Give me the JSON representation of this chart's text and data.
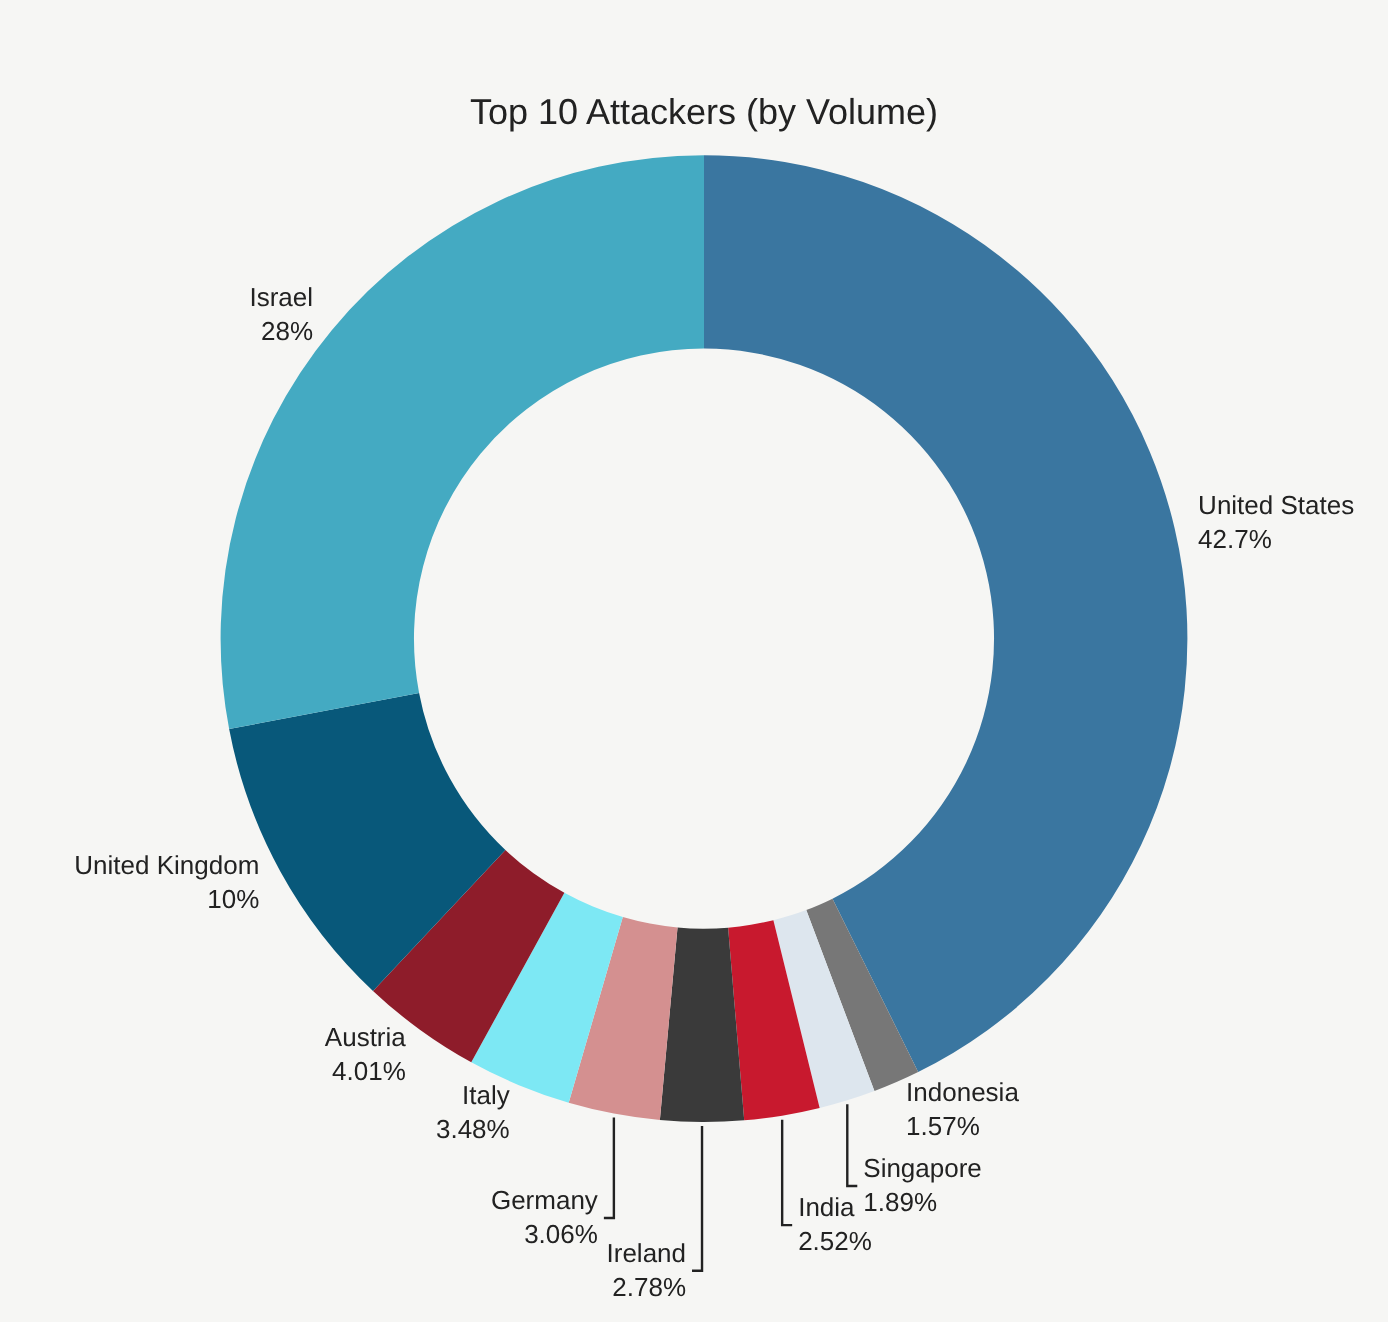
{
  "chart_data": {
    "type": "donut",
    "title": "Top 10 Attackers (by Volume)",
    "categories": [
      "United States",
      "Indonesia",
      "Singapore",
      "India",
      "Ireland",
      "Germany",
      "Italy",
      "Austria",
      "United Kingdom",
      "Israel"
    ],
    "values": [
      42.7,
      1.57,
      1.89,
      2.52,
      2.78,
      3.06,
      3.48,
      4.01,
      10,
      28
    ],
    "value_labels": [
      "42.7%",
      "1.57%",
      "1.89%",
      "2.52%",
      "2.78%",
      "3.06%",
      "3.48%",
      "4.01%",
      "10%",
      "28%"
    ],
    "colors": [
      "#3a76a0",
      "#777777",
      "#dde6ee",
      "#c8192e",
      "#3a3a3a",
      "#d49090",
      "#7de8f4",
      "#8e1c2a",
      "#08587a",
      "#44aac2"
    ],
    "legend": false
  }
}
